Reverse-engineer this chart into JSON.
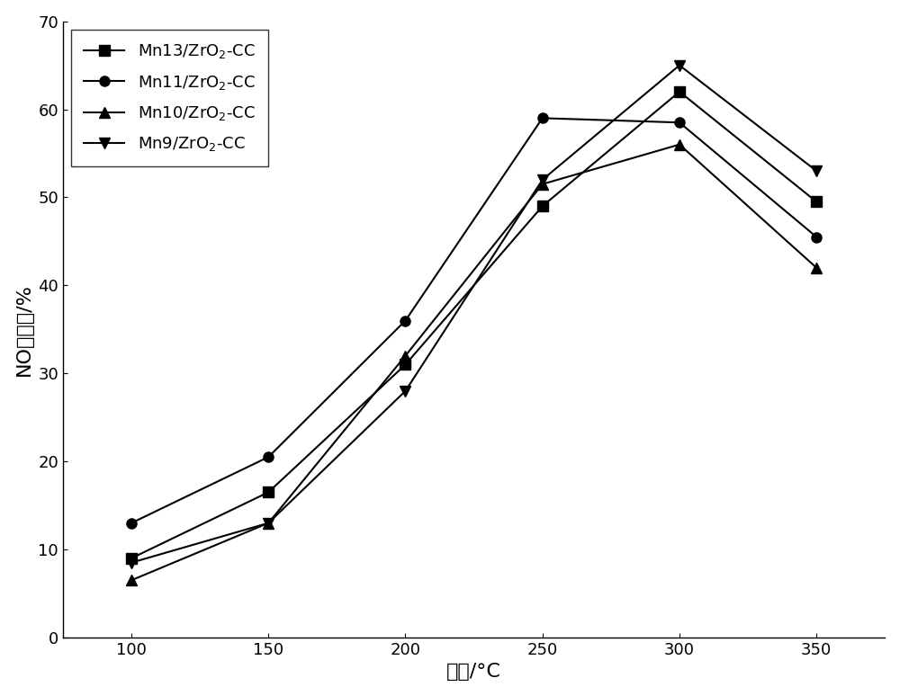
{
  "x": [
    100,
    150,
    200,
    250,
    300,
    350
  ],
  "series": [
    {
      "label": "Mn13/ZrO$_2$-CC",
      "marker": "s",
      "values": [
        9.0,
        16.5,
        31.0,
        49.0,
        62.0,
        49.5
      ]
    },
    {
      "label": "Mn11/ZrO$_2$-CC",
      "marker": "o",
      "values": [
        13.0,
        20.5,
        36.0,
        59.0,
        58.5,
        45.5
      ]
    },
    {
      "label": "Mn10/ZrO$_2$-CC",
      "marker": "^",
      "values": [
        6.5,
        13.0,
        32.0,
        51.5,
        56.0,
        42.0
      ]
    },
    {
      "label": "Mn9/ZrO$_2$-CC",
      "marker": "v",
      "values": [
        8.5,
        13.0,
        28.0,
        52.0,
        65.0,
        53.0
      ]
    }
  ],
  "xlabel_cn": "温度/°C",
  "ylabel_cn": "NO转化率/%",
  "xlim": [
    75,
    375
  ],
  "ylim": [
    0,
    70
  ],
  "xticks": [
    100,
    150,
    200,
    250,
    300,
    350
  ],
  "yticks": [
    0,
    10,
    20,
    30,
    40,
    50,
    60,
    70
  ],
  "color": "black",
  "linewidth": 1.5,
  "markersize": 8,
  "legend_loc": "upper left",
  "figsize": [
    10.0,
    7.74
  ],
  "dpi": 100
}
